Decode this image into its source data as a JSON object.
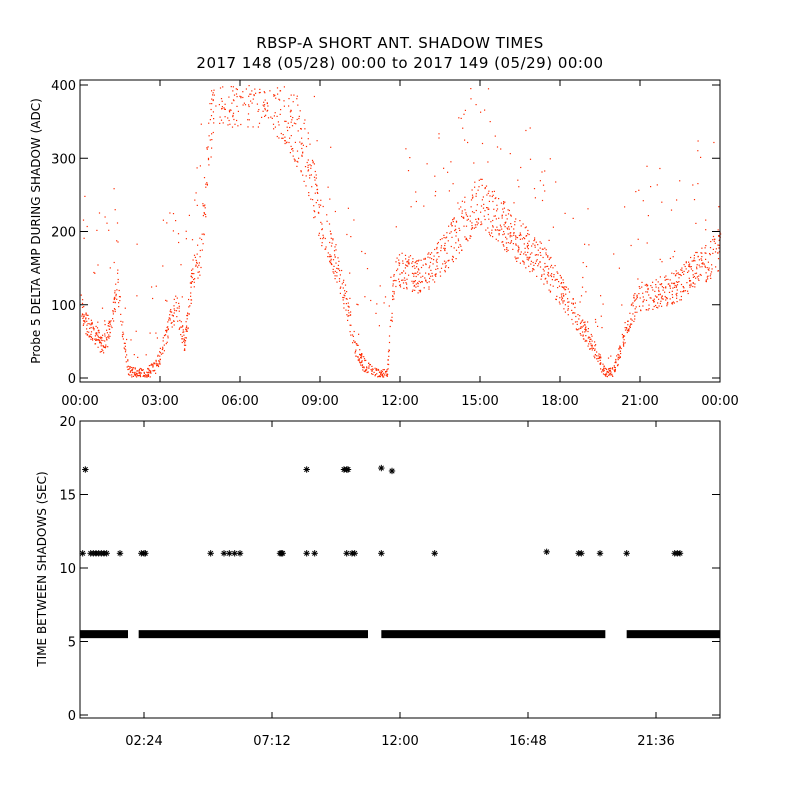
{
  "title_line1": "RBSP-A SHORT ANT. SHADOW TIMES",
  "title_line2": "2017 148 (05/28) 00:00 to 2017 149 (05/29) 00:00",
  "chart_data": [
    {
      "type": "scatter",
      "ylabel": "Probe 5 DELTA AMP DURING SHADOW (ADC)",
      "xlim": [
        0,
        24
      ],
      "ylim": [
        0,
        400
      ],
      "x_tick_labels": [
        "00:00",
        "03:00",
        "06:00",
        "09:00",
        "12:00",
        "15:00",
        "18:00",
        "21:00",
        "00:00"
      ],
      "y_tick_labels": [
        "0",
        "100",
        "200",
        "300",
        "400"
      ],
      "marker_color": "#ff2a00",
      "trend": {
        "x": [
          0.0,
          0.2,
          0.5,
          0.8,
          1.0,
          1.2,
          1.4,
          1.6,
          1.8,
          2.2,
          2.5,
          2.8,
          3.0,
          3.3,
          3.6,
          3.9,
          4.2,
          4.5,
          5.0,
          5.5,
          6.0,
          6.5,
          7.0,
          7.5,
          8.0,
          8.5,
          9.0,
          9.5,
          10.0,
          10.3,
          10.6,
          10.9,
          11.2,
          11.5,
          11.8,
          12.3,
          12.8,
          13.2,
          13.6,
          14.0,
          14.5,
          15.0,
          15.5,
          16.0,
          16.5,
          17.0,
          17.5,
          18.0,
          18.5,
          19.0,
          19.4,
          19.7,
          20.0,
          20.4,
          20.8,
          21.0,
          21.5,
          22.0,
          22.5,
          23.0,
          23.5,
          24.0
        ],
        "y": [
          100,
          75,
          65,
          45,
          55,
          80,
          130,
          60,
          10,
          5,
          8,
          15,
          30,
          70,
          100,
          45,
          140,
          170,
          400,
          400,
          400,
          400,
          400,
          380,
          350,
          300,
          215,
          170,
          100,
          45,
          20,
          10,
          5,
          5,
          150,
          145,
          140,
          150,
          170,
          190,
          220,
          245,
          225,
          205,
          185,
          170,
          150,
          120,
          90,
          60,
          30,
          5,
          8,
          60,
          100,
          110,
          115,
          120,
          130,
          145,
          160,
          175
        ]
      }
    },
    {
      "type": "scatter",
      "ylabel": "TIME BETWEEN SHADOWS (SEC)",
      "xlim": [
        0,
        24
      ],
      "ylim": [
        0,
        20
      ],
      "x_ticks": [
        2.4,
        7.2,
        12.0,
        16.8,
        21.6
      ],
      "x_tick_labels": [
        "02:24",
        "07:12",
        "12:00",
        "16:48",
        "21:36"
      ],
      "y_tick_labels": [
        "0",
        "5",
        "10",
        "15",
        "20"
      ],
      "marker": "*",
      "marker_color": "#000000",
      "baseline_value": 5.5,
      "baseline_ranges": [
        [
          0.0,
          1.8
        ],
        [
          2.2,
          10.8
        ],
        [
          11.3,
          19.7
        ],
        [
          20.5,
          24.0
        ]
      ],
      "points": [
        [
          0.2,
          16.7
        ],
        [
          0.1,
          11.0
        ],
        [
          0.4,
          11.0
        ],
        [
          0.5,
          11.0
        ],
        [
          0.6,
          11.0
        ],
        [
          0.7,
          11.0
        ],
        [
          0.8,
          11.0
        ],
        [
          0.9,
          11.0
        ],
        [
          1.0,
          11.0
        ],
        [
          1.5,
          11.0
        ],
        [
          2.3,
          11.0
        ],
        [
          2.4,
          11.0
        ],
        [
          2.45,
          11.0
        ],
        [
          4.9,
          11.0
        ],
        [
          5.4,
          11.0
        ],
        [
          5.6,
          11.0
        ],
        [
          5.8,
          11.0
        ],
        [
          6.0,
          11.0
        ],
        [
          7.5,
          11.0
        ],
        [
          7.55,
          11.0
        ],
        [
          7.6,
          11.0
        ],
        [
          8.5,
          16.7
        ],
        [
          8.5,
          11.0
        ],
        [
          8.8,
          11.0
        ],
        [
          9.9,
          16.7
        ],
        [
          10.0,
          16.7
        ],
        [
          10.05,
          16.7
        ],
        [
          10.0,
          11.0
        ],
        [
          10.2,
          11.0
        ],
        [
          10.3,
          11.0
        ],
        [
          11.3,
          16.8
        ],
        [
          11.7,
          16.6
        ],
        [
          11.3,
          11.0
        ],
        [
          13.3,
          11.0
        ],
        [
          17.5,
          11.1
        ],
        [
          18.7,
          11.0
        ],
        [
          18.8,
          11.0
        ],
        [
          19.5,
          11.0
        ],
        [
          20.5,
          11.0
        ],
        [
          22.3,
          11.0
        ],
        [
          22.4,
          11.0
        ],
        [
          22.5,
          11.0
        ]
      ]
    }
  ]
}
